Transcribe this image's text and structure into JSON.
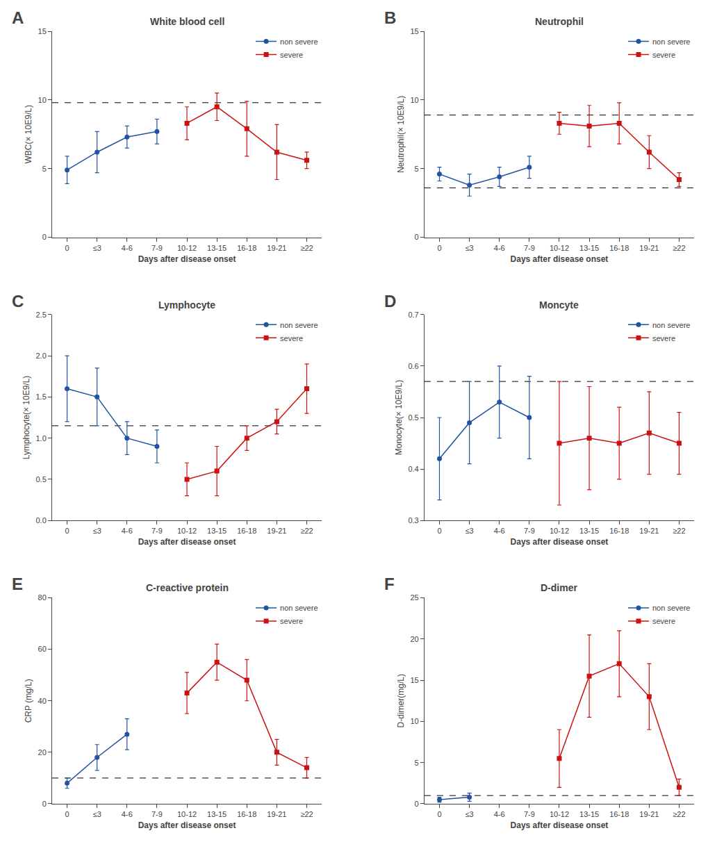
{
  "chart_data": [
    {
      "type": "line",
      "panel_label": "A",
      "title": "White blood cell",
      "x_label": "Days after disease onset",
      "y_label": "WBC(× 10E9/L)",
      "categories": [
        "0",
        "≤3",
        "4-6",
        "7-9",
        "10-12",
        "13-15",
        "16-18",
        "19-21",
        "≥22"
      ],
      "ylim": [
        0,
        15
      ],
      "yticks": [
        0,
        5,
        10,
        15
      ],
      "hlines": [
        9.8
      ],
      "grid": false,
      "legend": "upper right",
      "series": [
        {
          "name": "non severe",
          "color": "#2153a0",
          "marker": "circle",
          "values": [
            4.9,
            6.2,
            7.3,
            7.7,
            null,
            null,
            null,
            null,
            null
          ],
          "error_lo": [
            1.0,
            1.5,
            0.8,
            0.9,
            null,
            null,
            null,
            null,
            null
          ],
          "error_hi": [
            1.0,
            1.5,
            0.8,
            0.9,
            null,
            null,
            null,
            null,
            null
          ]
        },
        {
          "name": "severe",
          "color": "#cc1111",
          "marker": "square",
          "values": [
            null,
            null,
            null,
            null,
            8.3,
            9.5,
            7.9,
            6.2,
            5.6
          ],
          "error_lo": [
            null,
            null,
            null,
            null,
            1.2,
            1.0,
            2.0,
            2.0,
            0.6
          ],
          "error_hi": [
            null,
            null,
            null,
            null,
            1.2,
            1.0,
            2.0,
            2.0,
            0.6
          ]
        }
      ]
    },
    {
      "type": "line",
      "panel_label": "B",
      "title": "Neutrophil",
      "x_label": "Days after disease onset",
      "y_label": "Neutrophil(× 10E9/L)",
      "categories": [
        "0",
        "≤3",
        "4-6",
        "7-9",
        "10-12",
        "13-15",
        "16-18",
        "19-21",
        "≥22"
      ],
      "ylim": [
        0,
        15
      ],
      "yticks": [
        0,
        5,
        10,
        15
      ],
      "hlines": [
        3.6,
        8.9
      ],
      "grid": false,
      "legend": "upper right",
      "series": [
        {
          "name": "non severe",
          "color": "#2153a0",
          "marker": "circle",
          "values": [
            4.6,
            3.8,
            4.4,
            5.1,
            null,
            null,
            null,
            null,
            null
          ],
          "error_lo": [
            0.5,
            0.8,
            0.7,
            0.8,
            null,
            null,
            null,
            null,
            null
          ],
          "error_hi": [
            0.5,
            0.8,
            0.7,
            0.8,
            null,
            null,
            null,
            null,
            null
          ]
        },
        {
          "name": "severe",
          "color": "#cc1111",
          "marker": "square",
          "values": [
            null,
            null,
            null,
            null,
            8.3,
            8.1,
            8.3,
            6.2,
            4.2
          ],
          "error_lo": [
            null,
            null,
            null,
            null,
            0.8,
            1.5,
            1.5,
            1.2,
            0.5
          ],
          "error_hi": [
            null,
            null,
            null,
            null,
            0.8,
            1.5,
            1.5,
            1.2,
            0.5
          ]
        }
      ]
    },
    {
      "type": "line",
      "panel_label": "C",
      "title": "Lymphocyte",
      "x_label": "Days after disease onset",
      "y_label": "Lymphocyte(× 10E9/L)",
      "categories": [
        "0",
        "≤3",
        "4-6",
        "7-9",
        "10-12",
        "13-15",
        "16-18",
        "19-21",
        "≥22"
      ],
      "ylim": [
        0,
        2.5
      ],
      "yticks": [
        {
          "value": 0,
          "label": "0.0"
        },
        0.5,
        {
          "value": 1,
          "label": "1.0"
        },
        1.5,
        {
          "value": 2,
          "label": "2.0"
        },
        2.5
      ],
      "hlines": [
        1.15
      ],
      "grid": false,
      "legend": "upper right",
      "series": [
        {
          "name": "non severe",
          "color": "#2153a0",
          "marker": "circle",
          "values": [
            1.6,
            1.5,
            1.0,
            0.9,
            null,
            null,
            null,
            null,
            null
          ],
          "error_lo": [
            0.4,
            0.35,
            0.2,
            0.2,
            null,
            null,
            null,
            null,
            null
          ],
          "error_hi": [
            0.4,
            0.35,
            0.2,
            0.2,
            null,
            null,
            null,
            null,
            null
          ]
        },
        {
          "name": "severe",
          "color": "#cc1111",
          "marker": "square",
          "values": [
            null,
            null,
            null,
            null,
            0.5,
            0.6,
            1.0,
            1.2,
            1.6
          ],
          "error_lo": [
            null,
            null,
            null,
            null,
            0.2,
            0.3,
            0.15,
            0.15,
            0.3
          ],
          "error_hi": [
            null,
            null,
            null,
            null,
            0.2,
            0.3,
            0.15,
            0.15,
            0.3
          ]
        }
      ]
    },
    {
      "type": "line",
      "panel_label": "D",
      "title": "Moncyte",
      "x_label": "Days after disease onset",
      "y_label": "Monocyte(× 10E9/L)",
      "categories": [
        "0",
        "≤3",
        "4-6",
        "7-9",
        "10-12",
        "13-15",
        "16-18",
        "19-21",
        "≥22"
      ],
      "ylim": [
        0.3,
        0.7
      ],
      "yticks": [
        0.3,
        0.4,
        0.5,
        0.6,
        0.7
      ],
      "hlines": [
        0.57
      ],
      "grid": false,
      "legend": "upper right",
      "series": [
        {
          "name": "non severe",
          "color": "#2153a0",
          "marker": "circle",
          "values": [
            0.42,
            0.49,
            0.53,
            0.5,
            null,
            null,
            null,
            null,
            null
          ],
          "error_lo": [
            0.08,
            0.08,
            0.07,
            0.08,
            null,
            null,
            null,
            null,
            null
          ],
          "error_hi": [
            0.08,
            0.08,
            0.07,
            0.08,
            null,
            null,
            null,
            null,
            null
          ]
        },
        {
          "name": "severe",
          "color": "#cc1111",
          "marker": "square",
          "values": [
            null,
            null,
            null,
            null,
            0.45,
            0.46,
            0.45,
            0.47,
            0.45
          ],
          "error_lo": [
            null,
            null,
            null,
            null,
            0.12,
            0.1,
            0.07,
            0.08,
            0.06
          ],
          "error_hi": [
            null,
            null,
            null,
            null,
            0.12,
            0.1,
            0.07,
            0.08,
            0.06
          ]
        }
      ]
    },
    {
      "type": "line",
      "panel_label": "E",
      "title": "C-reactive protein",
      "x_label": "Days after disease onset",
      "y_label": "CRP (mg/L)",
      "categories": [
        "0",
        "≤3",
        "4-6",
        "7-9",
        "10-12",
        "13-15",
        "16-18",
        "19-21",
        "≥22"
      ],
      "ylim": [
        0,
        80
      ],
      "yticks": [
        0,
        20,
        40,
        60,
        80
      ],
      "hlines": [
        10
      ],
      "grid": false,
      "legend": "upper right",
      "series": [
        {
          "name": "non severe",
          "color": "#2153a0",
          "marker": "circle",
          "values": [
            8,
            18,
            27,
            null,
            null,
            null,
            null,
            null,
            null
          ],
          "error_lo": [
            2,
            5,
            6,
            null,
            null,
            null,
            null,
            null,
            null
          ],
          "error_hi": [
            2,
            5,
            6,
            null,
            null,
            null,
            null,
            null,
            null
          ]
        },
        {
          "name": "severe",
          "color": "#cc1111",
          "marker": "square",
          "values": [
            null,
            null,
            null,
            null,
            43,
            55,
            48,
            20,
            14
          ],
          "error_lo": [
            null,
            null,
            null,
            null,
            8,
            7,
            8,
            5,
            4
          ],
          "error_hi": [
            null,
            null,
            null,
            null,
            8,
            7,
            8,
            5,
            4
          ]
        }
      ]
    },
    {
      "type": "line",
      "panel_label": "F",
      "title": "D-dimer",
      "x_label": "Days after disease onset",
      "y_label": "D-dimer(mg/L)",
      "categories": [
        "0",
        "≤3",
        "4-6",
        "7-9",
        "10-12",
        "13-15",
        "16-18",
        "19-21",
        "≥22"
      ],
      "ylim": [
        0,
        25
      ],
      "yticks": [
        0,
        5,
        10,
        15,
        20,
        25
      ],
      "hlines": [
        1.0
      ],
      "grid": false,
      "legend": "upper right",
      "series": [
        {
          "name": "non severe",
          "color": "#2153a0",
          "marker": "circle",
          "values": [
            0.5,
            0.8,
            null,
            null,
            null,
            null,
            null,
            null,
            null
          ],
          "error_lo": [
            0.3,
            0.5,
            null,
            null,
            null,
            null,
            null,
            null,
            null
          ],
          "error_hi": [
            0.3,
            0.5,
            null,
            null,
            null,
            null,
            null,
            null,
            null
          ]
        },
        {
          "name": "severe",
          "color": "#cc1111",
          "marker": "square",
          "values": [
            null,
            null,
            null,
            null,
            5.5,
            15.5,
            17.0,
            13.0,
            2.0
          ],
          "error_lo": [
            null,
            null,
            null,
            null,
            3.5,
            5.0,
            4.0,
            4.0,
            1.0
          ],
          "error_hi": [
            null,
            null,
            null,
            null,
            3.5,
            5.0,
            4.0,
            4.0,
            1.0
          ]
        }
      ]
    }
  ]
}
